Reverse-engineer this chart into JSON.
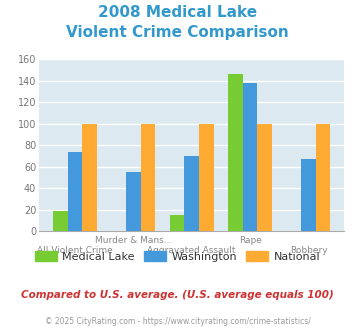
{
  "title_line1": "2008 Medical Lake",
  "title_line2": "Violent Crime Comparison",
  "title_color": "#3399cc",
  "categories": [
    "All Violent Crime",
    "Murder & Mans...",
    "Aggravated Assault",
    "Rape",
    "Robbery"
  ],
  "row1_labels": [
    "",
    "Murder & Mans...",
    "",
    "Rape",
    ""
  ],
  "row2_labels": [
    "All Violent Crime",
    "",
    "Aggravated Assault",
    "",
    "Robbery"
  ],
  "medical_lake": [
    19,
    0,
    15,
    146,
    0
  ],
  "washington": [
    74,
    55,
    70,
    138,
    67
  ],
  "national": [
    100,
    100,
    100,
    100,
    100
  ],
  "bar_colors": {
    "medical_lake": "#77cc33",
    "washington": "#4499dd",
    "national": "#ffaa33"
  },
  "ylim": [
    0,
    160
  ],
  "yticks": [
    0,
    20,
    40,
    60,
    80,
    100,
    120,
    140,
    160
  ],
  "background_color": "#dce9f0",
  "grid_color": "#ffffff",
  "footnote": "Compared to U.S. average. (U.S. average equals 100)",
  "copyright": "© 2025 CityRating.com - https://www.cityrating.com/crime-statistics/",
  "footnote_color": "#cc3333",
  "copyright_color": "#999999",
  "legend_labels": [
    "Medical Lake",
    "Washington",
    "National"
  ],
  "bar_width": 0.25
}
